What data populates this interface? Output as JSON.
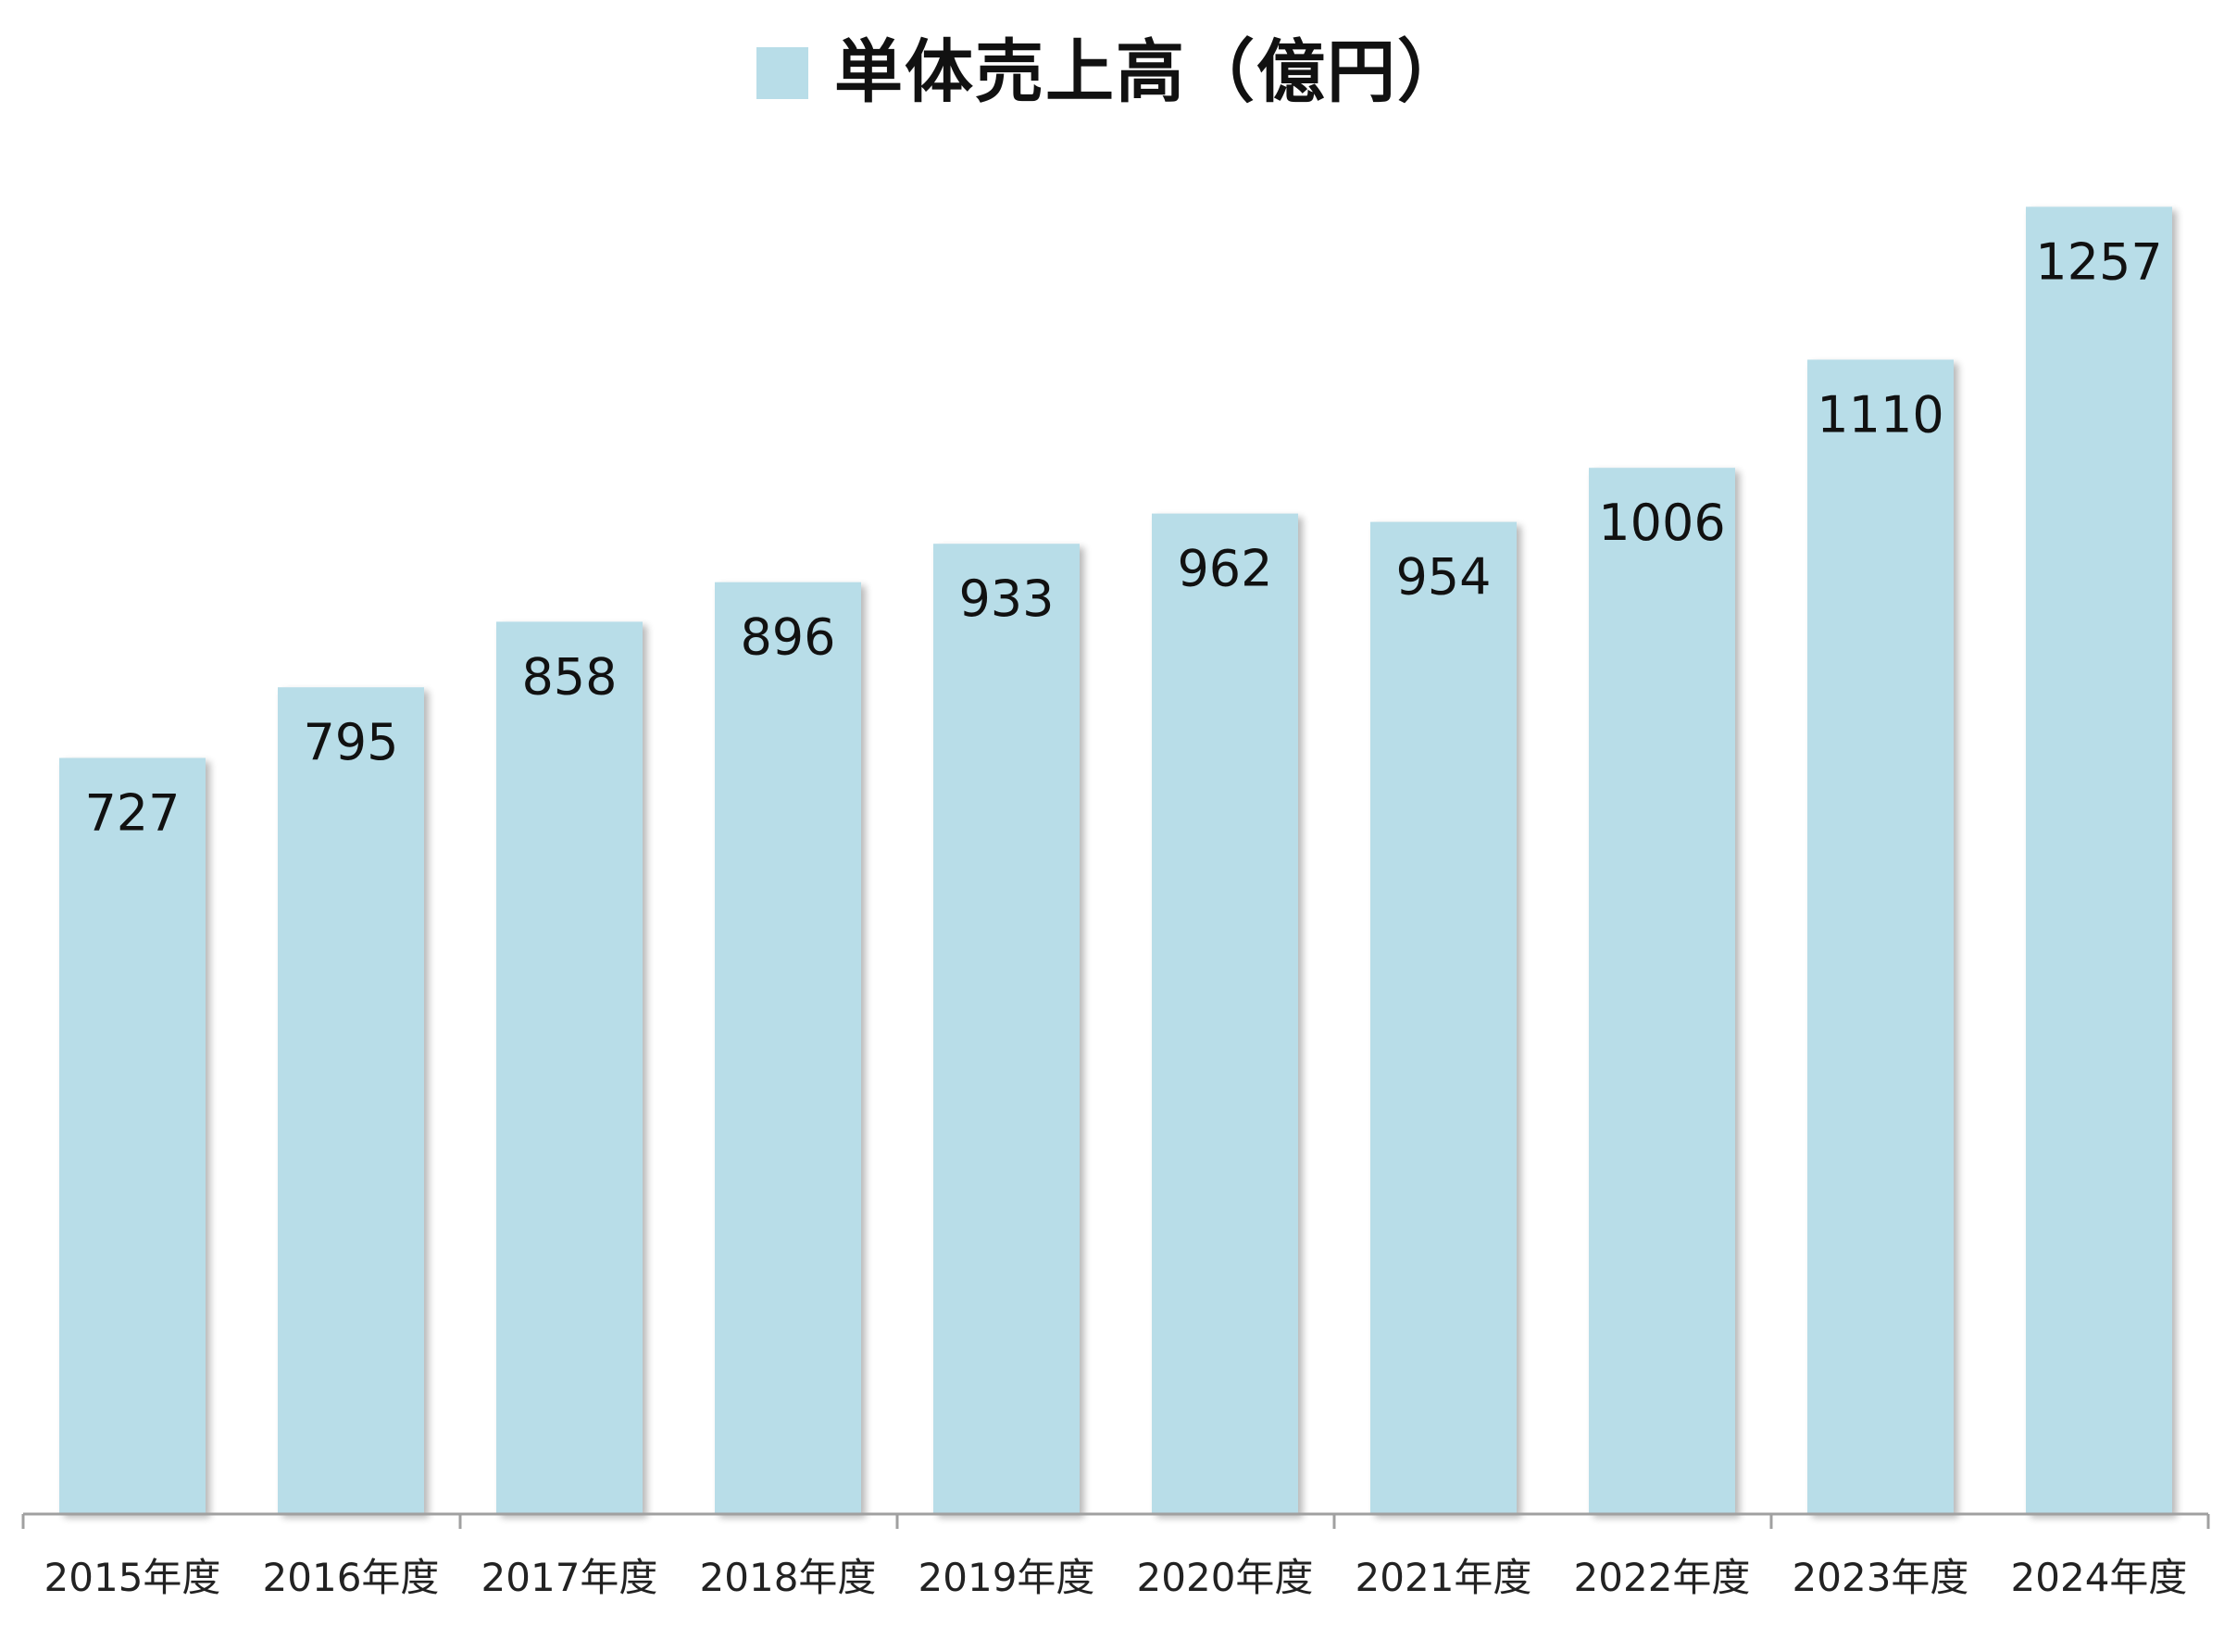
{
  "chart_data": {
    "type": "bar",
    "title": "",
    "xlabel": "",
    "ylabel": "",
    "categories": [
      "2015年度",
      "2016年度",
      "2017年度",
      "2018年度",
      "2019年度",
      "2020年度",
      "2021年度",
      "2022年度",
      "2023年度",
      "2024年度"
    ],
    "series": [
      {
        "name": "単体売上高（億円）",
        "values": [
          727,
          795,
          858,
          896,
          933,
          962,
          954,
          1006,
          1110,
          1257
        ]
      }
    ],
    "data_labels": [
      "727",
      "795",
      "858",
      "896",
      "933",
      "962",
      "954",
      "1006",
      "1110",
      "1257"
    ],
    "ylim": [
      0,
      1300
    ],
    "grid": false,
    "legend_position": "top-center",
    "colors": {
      "bar": "#b8dde8",
      "axis": "#a0a0a0",
      "text": "#111111"
    }
  }
}
